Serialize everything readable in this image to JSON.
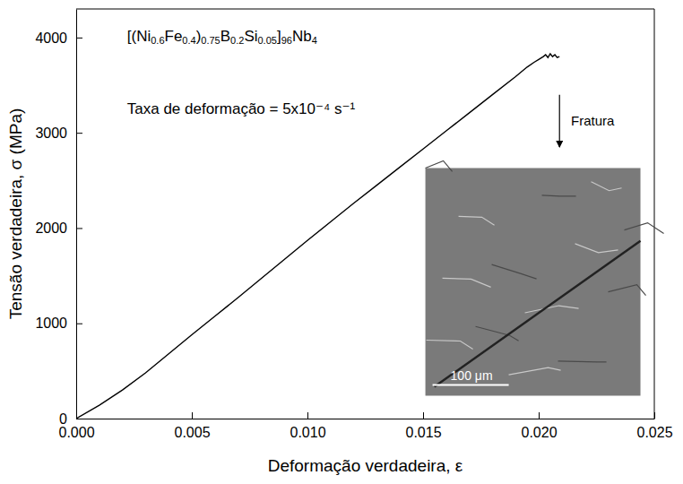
{
  "chart_data": {
    "type": "line",
    "x_label": "Deformação verdadeira, ε",
    "y_label": "Tensão verdadeira, σ (MPa)",
    "annotations": [
      "[(Ni0.6Fe0.4)0.75B0.2Si0.05]96Nb4",
      "Taxa de deformação = 5x10⁻⁴ s⁻¹",
      "Fratura",
      "100 μm"
    ],
    "x": [
      0,
      0.001,
      0.002,
      0.003,
      0.004,
      0.005,
      0.006,
      0.007,
      0.008,
      0.009,
      0.01,
      0.011,
      0.012,
      0.013,
      0.014,
      0.015,
      0.016,
      0.017,
      0.018,
      0.019,
      0.0195,
      0.0198,
      0.02,
      0.0202,
      0.0203,
      0.0204,
      0.0205,
      0.0206,
      0.0207,
      0.0208,
      0.0209
    ],
    "series": [
      {
        "name": "[(Ni0.6Fe0.4)0.75B0.2Si0.05]96Nb4",
        "color": "#000000",
        "line_style": "solid",
        "values": [
          0,
          140,
          300,
          480,
          680,
          880,
          1075,
          1270,
          1470,
          1670,
          1870,
          2065,
          2260,
          2450,
          2640,
          2830,
          3020,
          3210,
          3400,
          3590,
          3690,
          3740,
          3770,
          3800,
          3820,
          3790,
          3830,
          3800,
          3820,
          3790,
          3800
        ]
      }
    ],
    "xlim": [
      0,
      0.025
    ],
    "xticks": [
      {
        "value": 0,
        "label": "0.000"
      },
      {
        "value": 0.005,
        "label": "0.005"
      },
      {
        "value": 0.01,
        "label": "0.010"
      },
      {
        "value": 0.015,
        "label": "0.015"
      },
      {
        "value": 0.02,
        "label": "0.020"
      },
      {
        "value": 0.025,
        "label": "0.025"
      }
    ],
    "ylim": [
      0,
      4300
    ],
    "yticks": [
      0,
      1000,
      2000,
      3000,
      4000
    ],
    "grid": false
  }
}
